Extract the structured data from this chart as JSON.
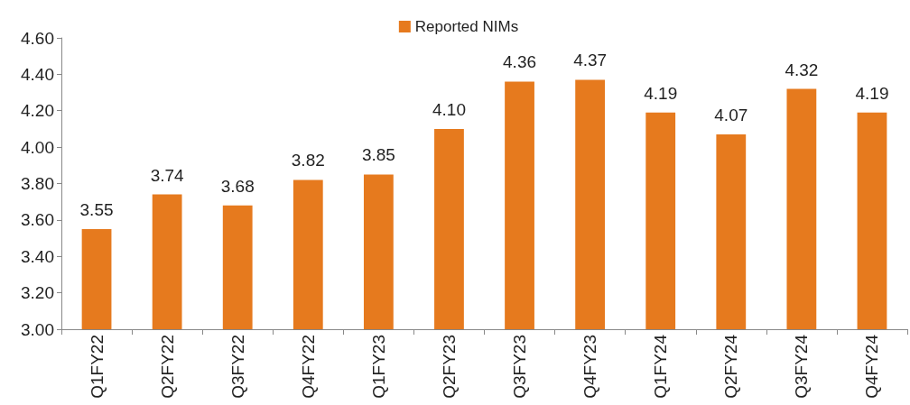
{
  "chart_data": {
    "type": "bar",
    "categories": [
      "Q1FY22",
      "Q2FY22",
      "Q3FY22",
      "Q4FY22",
      "Q1FY23",
      "Q2FY23",
      "Q3FY23",
      "Q4FY23",
      "Q1FY24",
      "Q2FY24",
      "Q3FY24",
      "Q4FY24"
    ],
    "series": [
      {
        "name": "Reported NIMs",
        "color": "#e67a1e",
        "values": [
          3.55,
          3.74,
          3.68,
          3.82,
          3.85,
          4.1,
          4.36,
          4.37,
          4.19,
          4.07,
          4.32,
          4.19
        ]
      }
    ],
    "ylim": [
      3.0,
      4.6
    ],
    "yticks": [
      {
        "value": 3.0,
        "label": "3.00"
      },
      {
        "value": 3.2,
        "label": "3.20"
      },
      {
        "value": 3.4,
        "label": "3.40"
      },
      {
        "value": 3.6,
        "label": "3.60"
      },
      {
        "value": 3.8,
        "label": "3.80"
      },
      {
        "value": 4.0,
        "label": "4.00"
      },
      {
        "value": 4.2,
        "label": "4.20"
      },
      {
        "value": 4.4,
        "label": "4.40"
      },
      {
        "value": 4.6,
        "label": "4.60"
      }
    ],
    "value_labels": [
      "3.55",
      "3.74",
      "3.68",
      "3.82",
      "3.85",
      "4.10",
      "4.36",
      "4.37",
      "4.19",
      "4.07",
      "4.32",
      "4.19"
    ],
    "grid": false,
    "legend": "top"
  }
}
